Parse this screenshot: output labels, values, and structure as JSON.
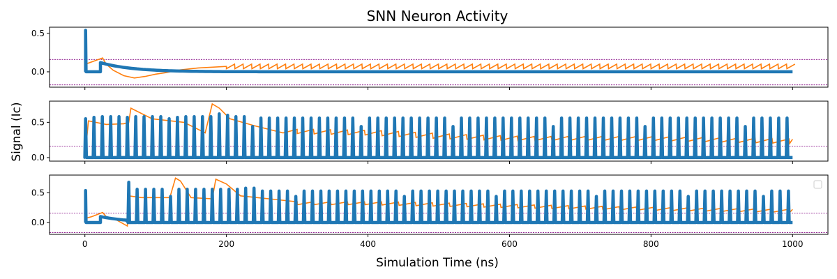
{
  "chart_data": {
    "type": "line",
    "title": "SNN Neuron Activity",
    "xlabel": "Simulation Time (ns)",
    "ylabel": "Signal (Ic)",
    "xlim": [
      -50,
      1050
    ],
    "x_ticks": [
      0,
      200,
      400,
      600,
      800,
      1000
    ],
    "x_tick_labels": [
      "0",
      "200",
      "400",
      "600",
      "800",
      "1000"
    ],
    "legend": "empty box, upper-right of bottom panel",
    "colors": {
      "spike": "#1f77b4",
      "state": "#ff7f0e",
      "threshold": "#800080"
    },
    "panels": [
      {
        "ylim": [
          -0.2,
          0.58
        ],
        "y_ticks": [
          0.0,
          0.5
        ],
        "y_tick_labels": [
          "0.0",
          "0.5"
        ],
        "threshold_lines": [
          0.16,
          -0.17
        ],
        "spikes": {
          "spike_times": [
            1
          ],
          "peak": 0.54,
          "decay": {
            "start": 22,
            "start_value": 0.12,
            "tau": 45
          }
        },
        "state": {
          "points": [
            [
              1,
              0.1
            ],
            [
              25,
              0.18
            ],
            [
              30,
              0.1
            ],
            [
              40,
              0.02
            ],
            [
              55,
              -0.05
            ],
            [
              70,
              -0.08
            ],
            [
              85,
              -0.06
            ],
            [
              100,
              -0.03
            ],
            [
              115,
              -0.01
            ],
            [
              130,
              0.02
            ],
            [
              160,
              0.05
            ],
            [
              200,
              0.07
            ]
          ],
          "osc_start": 200,
          "osc_end": 1000,
          "osc_period": 12,
          "osc_low": 0.04,
          "osc_high": 0.1
        }
      },
      {
        "ylim": [
          -0.05,
          0.8
        ],
        "y_ticks": [
          0.0,
          0.5
        ],
        "y_tick_labels": [
          "0.0",
          "0.5"
        ],
        "threshold_lines": [
          0.16
        ],
        "spikes": {
          "first": 1,
          "period": 11.8,
          "count": 85,
          "heights": [
            0.55,
            0.57,
            0.58,
            0.58,
            0.58,
            0.57,
            0.58,
            0.58,
            0.58,
            0.58,
            0.55,
            0.57,
            0.58,
            0.58,
            0.58,
            0.58,
            0.62,
            0.6,
            0.58,
            0.58
          ],
          "default_height": 0.56,
          "short_spikes": [
            20,
            33,
            44,
            56,
            67,
            79
          ],
          "short_height": 0.44
        },
        "state": {
          "points": [
            [
              1,
              0.1
            ],
            [
              5,
              0.52
            ],
            [
              30,
              0.47
            ],
            [
              55,
              0.48
            ],
            [
              62,
              0.5
            ],
            [
              65,
              0.7
            ],
            [
              95,
              0.55
            ],
            [
              140,
              0.5
            ],
            [
              170,
              0.35
            ],
            [
              180,
              0.76
            ],
            [
              190,
              0.7
            ],
            [
              205,
              0.55
            ],
            [
              240,
              0.45
            ],
            [
              280,
              0.35
            ],
            [
              300,
              0.4
            ],
            [
              400,
              0.38
            ],
            [
              500,
              0.33
            ],
            [
              600,
              0.3
            ],
            [
              800,
              0.3
            ],
            [
              1000,
              0.26
            ]
          ],
          "sawtooth_amp": 0.06,
          "sawtooth_period": 24
        }
      },
      {
        "ylim": [
          -0.2,
          0.8
        ],
        "y_ticks": [
          0.0,
          0.5
        ],
        "y_tick_labels": [
          "0.0",
          "0.5"
        ],
        "threshold_lines": [
          0.16,
          -0.17
        ],
        "spikes": {
          "first": 62,
          "period": 11.8,
          "count": 80,
          "heights": [
            0.68,
            0.56,
            0.56,
            0.56,
            0.56,
            0.56,
            0.56,
            0.56,
            0.56,
            0.56,
            0.56,
            0.56,
            0.56,
            0.56,
            0.58,
            0.58
          ],
          "default_height": 0.53,
          "short_spikes": [
            5,
            20,
            33,
            44,
            56,
            67,
            76
          ],
          "short_height": 0.44,
          "early_spike": {
            "t": 1,
            "peak": 0.54
          },
          "decay": {
            "start": 22,
            "start_value": 0.1,
            "tau": 40,
            "end": 62
          }
        },
        "state": {
          "points": [
            [
              1,
              0.07
            ],
            [
              10,
              0.1
            ],
            [
              25,
              0.17
            ],
            [
              30,
              0.1
            ],
            [
              45,
              0.04
            ],
            [
              60,
              -0.06
            ],
            [
              62,
              0.45
            ],
            [
              80,
              0.42
            ],
            [
              120,
              0.42
            ],
            [
              128,
              0.75
            ],
            [
              135,
              0.7
            ],
            [
              150,
              0.42
            ],
            [
              180,
              0.4
            ],
            [
              185,
              0.73
            ],
            [
              200,
              0.65
            ],
            [
              220,
              0.45
            ],
            [
              260,
              0.4
            ],
            [
              300,
              0.35
            ],
            [
              400,
              0.35
            ],
            [
              600,
              0.3
            ],
            [
              800,
              0.25
            ],
            [
              1000,
              0.22
            ]
          ],
          "sawtooth_amp": 0.05,
          "sawtooth_period": 24
        }
      }
    ]
  }
}
